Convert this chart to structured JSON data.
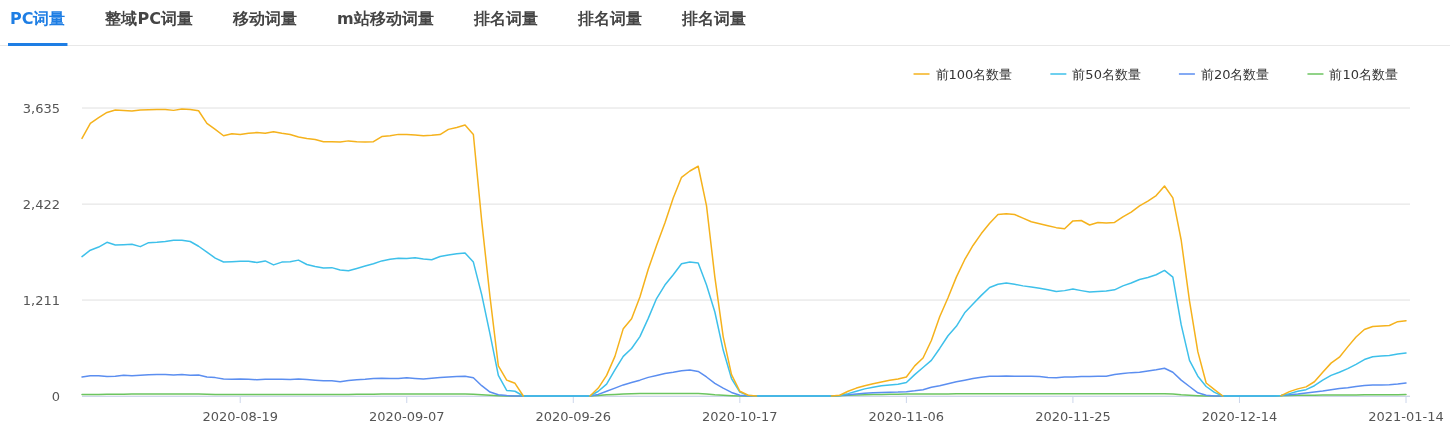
{
  "chart_data": {
    "type": "line",
    "annotations": [
      "PC词量",
      "整域PC词量",
      "移动词量",
      "m站移动词量",
      "排名词量",
      "排名词量",
      "排名词量"
    ],
    "categories": [
      null,
      null,
      null,
      null,
      null,
      null,
      null,
      null,
      null,
      null,
      null,
      null,
      null,
      null,
      null,
      null,
      null,
      null,
      null,
      "2020-08-19",
      null,
      null,
      null,
      null,
      null,
      null,
      null,
      null,
      null,
      null,
      null,
      null,
      null,
      null,
      null,
      null,
      null,
      null,
      null,
      "2020-09-07",
      null,
      null,
      null,
      null,
      null,
      null,
      null,
      null,
      null,
      null,
      null,
      null,
      null,
      null,
      null,
      null,
      null,
      null,
      null,
      "2020-09-26",
      null,
      null,
      null,
      null,
      null,
      null,
      null,
      null,
      null,
      null,
      null,
      null,
      null,
      null,
      null,
      null,
      null,
      null,
      null,
      "2020-10-17",
      null,
      null,
      null,
      null,
      null,
      null,
      null,
      null,
      null,
      null,
      null,
      null,
      null,
      null,
      null,
      null,
      null,
      null,
      null,
      "2020-11-06",
      null,
      null,
      null,
      null,
      null,
      null,
      null,
      null,
      null,
      null,
      null,
      null,
      null,
      null,
      null,
      null,
      null,
      null,
      null,
      "2020-11-25",
      null,
      null,
      null,
      null,
      null,
      null,
      null,
      null,
      null,
      null,
      null,
      null,
      null,
      null,
      null,
      null,
      null,
      null,
      null,
      "2020-12-14",
      null,
      null,
      null,
      null,
      null,
      null,
      null,
      null,
      null,
      null,
      null,
      null,
      null,
      null,
      null,
      null,
      null,
      null,
      null,
      "2021-01-14"
    ],
    "series": [
      {
        "name": "前100名数量",
        "color": "#f5b21c",
        "values": [
          3252,
          3440,
          3513,
          3579,
          3609,
          3603,
          3598,
          3610,
          3612,
          3615,
          3615,
          3605,
          3622,
          3615,
          3600,
          3440,
          3365,
          3285,
          3310,
          3300,
          3315,
          3325,
          3315,
          3335,
          3315,
          3300,
          3270,
          3250,
          3237,
          3210,
          3210,
          3205,
          3220,
          3210,
          3205,
          3210,
          3275,
          3285,
          3302,
          3302,
          3295,
          3285,
          3290,
          3300,
          3365,
          3390,
          3420,
          3300,
          2210,
          1250,
          380,
          200,
          160,
          0,
          null,
          null,
          null,
          null,
          null,
          null,
          null,
          0,
          100,
          260,
          500,
          850,
          975,
          1250,
          1600,
          1900,
          2183,
          2500,
          2760,
          2840,
          2900,
          2400,
          1500,
          750,
          270,
          60,
          10,
          0,
          null,
          null,
          null,
          null,
          null,
          null,
          null,
          null,
          0,
          10,
          60,
          100,
          130,
          155,
          177,
          200,
          215,
          240,
          380,
          480,
          700,
          1000,
          1240,
          1500,
          1720,
          1900,
          2050,
          2180,
          2290,
          2300,
          2290,
          2245,
          2200,
          2175,
          2150,
          2125,
          2110,
          2210,
          2215,
          2158,
          2190,
          2185,
          2190,
          2260,
          2322,
          2400,
          2460,
          2530,
          2650,
          2500,
          1969,
          1200,
          560,
          164,
          80,
          0,
          null,
          null,
          null,
          null,
          null,
          null,
          5,
          55,
          90,
          115,
          180,
          300,
          415,
          490,
          620,
          745,
          840,
          878,
          883,
          890,
          938,
          950
        ]
      },
      {
        "name": "前50名数量",
        "color": "#3ec0ea",
        "values": [
          1759,
          1840,
          1880,
          1940,
          1905,
          1910,
          1915,
          1885,
          1935,
          1940,
          1950,
          1965,
          1965,
          1950,
          1890,
          1817,
          1740,
          1691,
          1695,
          1700,
          1700,
          1685,
          1705,
          1655,
          1690,
          1695,
          1715,
          1660,
          1635,
          1615,
          1620,
          1590,
          1580,
          1610,
          1640,
          1670,
          1705,
          1725,
          1740,
          1735,
          1745,
          1730,
          1720,
          1760,
          1780,
          1795,
          1805,
          1690,
          1280,
          780,
          260,
          70,
          60,
          0,
          0,
          0,
          0,
          0,
          0,
          0,
          0,
          0,
          60,
          150,
          330,
          500,
          600,
          750,
          980,
          1230,
          1400,
          1530,
          1670,
          1690,
          1680,
          1400,
          1060,
          580,
          220,
          50,
          5,
          0,
          0,
          0,
          0,
          0,
          0,
          0,
          0,
          0,
          0,
          5,
          30,
          60,
          90,
          110,
          130,
          140,
          148,
          170,
          270,
          360,
          450,
          600,
          760,
          880,
          1050,
          1160,
          1270,
          1370,
          1410,
          1426,
          1410,
          1390,
          1376,
          1360,
          1340,
          1320,
          1330,
          1350,
          1330,
          1312,
          1320,
          1325,
          1340,
          1390,
          1426,
          1470,
          1495,
          1530,
          1585,
          1500,
          900,
          450,
          250,
          120,
          45,
          0,
          0,
          0,
          0,
          0,
          0,
          0,
          5,
          30,
          60,
          80,
          130,
          200,
          260,
          300,
          345,
          400,
          460,
          495,
          505,
          510,
          530,
          543
        ]
      },
      {
        "name": "前20名数量",
        "color": "#5b8ef0",
        "values": [
          240,
          255,
          255,
          245,
          250,
          262,
          255,
          262,
          268,
          270,
          272,
          265,
          270,
          262,
          265,
          240,
          232,
          215,
          210,
          215,
          212,
          205,
          212,
          210,
          210,
          208,
          215,
          208,
          200,
          192,
          192,
          180,
          195,
          205,
          210,
          220,
          225,
          220,
          220,
          230,
          222,
          215,
          225,
          235,
          240,
          245,
          248,
          230,
          130,
          50,
          15,
          5,
          0,
          0,
          0,
          0,
          0,
          0,
          0,
          0,
          0,
          0,
          20,
          60,
          100,
          140,
          170,
          200,
          235,
          260,
          285,
          300,
          320,
          328,
          310,
          240,
          160,
          100,
          45,
          10,
          0,
          0,
          0,
          0,
          0,
          0,
          0,
          0,
          0,
          0,
          0,
          5,
          15,
          25,
          35,
          40,
          45,
          48,
          50,
          55,
          65,
          80,
          110,
          130,
          155,
          180,
          200,
          220,
          238,
          250,
          250,
          252,
          250,
          250,
          250,
          245,
          235,
          230,
          240,
          240,
          245,
          245,
          248,
          250,
          270,
          285,
          295,
          300,
          315,
          330,
          350,
          300,
          200,
          120,
          40,
          10,
          0,
          0,
          0,
          0,
          0,
          0,
          0,
          0,
          5,
          15,
          25,
          38,
          50,
          63,
          80,
          95,
          105,
          120,
          132,
          140,
          140,
          142,
          150,
          164
        ]
      },
      {
        "name": "前10名数量",
        "color": "#6cc560",
        "values": [
          20,
          20,
          20,
          22,
          22,
          22,
          24,
          24,
          24,
          25,
          25,
          24,
          24,
          25,
          24,
          22,
          20,
          20,
          20,
          20,
          20,
          20,
          20,
          20,
          20,
          20,
          20,
          18,
          18,
          18,
          18,
          20,
          20,
          22,
          22,
          22,
          24,
          24,
          25,
          25,
          24,
          24,
          24,
          25,
          25,
          24,
          24,
          22,
          15,
          8,
          3,
          0,
          0,
          0,
          0,
          0,
          0,
          0,
          0,
          0,
          0,
          0,
          5,
          15,
          20,
          25,
          28,
          30,
          30,
          30,
          30,
          32,
          32,
          32,
          30,
          25,
          15,
          8,
          3,
          0,
          0,
          0,
          0,
          0,
          0,
          0,
          0,
          0,
          0,
          0,
          0,
          3,
          8,
          12,
          15,
          18,
          20,
          22,
          22,
          24,
          25,
          25,
          26,
          26,
          26,
          27,
          27,
          28,
          28,
          28,
          28,
          28,
          28,
          28,
          28,
          28,
          28,
          28,
          28,
          28,
          28,
          28,
          28,
          28,
          28,
          28,
          28,
          28,
          28,
          28,
          28,
          25,
          15,
          8,
          3,
          0,
          0,
          0,
          0,
          0,
          0,
          0,
          0,
          0,
          3,
          6,
          8,
          10,
          10,
          12,
          12,
          12,
          14,
          14,
          15,
          15,
          15,
          16,
          16,
          18
        ]
      }
    ],
    "ylim": [
      0,
      3635
    ],
    "yticks": [
      0,
      {
        "value": 1211,
        "label": "1,211"
      },
      {
        "value": 2422,
        "label": "2,422"
      },
      {
        "value": 3635,
        "label": "3,635"
      }
    ],
    "grid": "y",
    "legend": "top right"
  }
}
